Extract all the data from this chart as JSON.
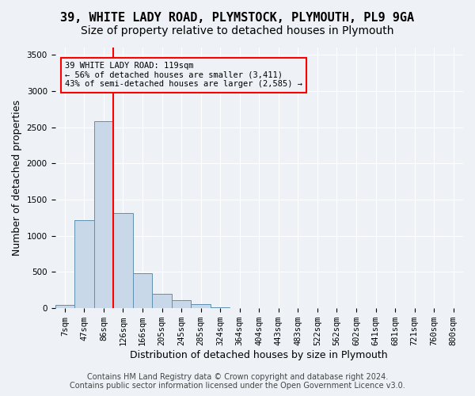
{
  "title_line1": "39, WHITE LADY ROAD, PLYMSTOCK, PLYMOUTH, PL9 9GA",
  "title_line2": "Size of property relative to detached houses in Plymouth",
  "xlabel": "Distribution of detached houses by size in Plymouth",
  "ylabel": "Number of detached properties",
  "footer_line1": "Contains HM Land Registry data © Crown copyright and database right 2024.",
  "footer_line2": "Contains public sector information licensed under the Open Government Licence v3.0.",
  "bin_labels": [
    "7sqm",
    "47sqm",
    "86sqm",
    "126sqm",
    "166sqm",
    "205sqm",
    "245sqm",
    "285sqm",
    "324sqm",
    "364sqm",
    "404sqm",
    "443sqm",
    "483sqm",
    "522sqm",
    "562sqm",
    "602sqm",
    "641sqm",
    "681sqm",
    "721sqm",
    "760sqm",
    "800sqm"
  ],
  "bar_values": [
    50,
    1220,
    2580,
    1310,
    480,
    195,
    110,
    55,
    15,
    5,
    2,
    2,
    1,
    0,
    0,
    0,
    0,
    0,
    0,
    0,
    0
  ],
  "bar_color": "#c8d8e8",
  "bar_edge_color": "#6090b0",
  "annotation_line1": "39 WHITE LADY ROAD: 119sqm",
  "annotation_line2": "← 56% of detached houses are smaller (3,411)",
  "annotation_line3": "43% of semi-detached houses are larger (2,585) →",
  "red_line_x": 2.5,
  "ylim": [
    0,
    3600
  ],
  "yticks": [
    0,
    500,
    1000,
    1500,
    2000,
    2500,
    3000,
    3500
  ],
  "background_color": "#eef2f7",
  "grid_color": "#ffffff",
  "title_fontsize": 11,
  "subtitle_fontsize": 10,
  "axis_label_fontsize": 9,
  "tick_fontsize": 7.5,
  "footer_fontsize": 7
}
